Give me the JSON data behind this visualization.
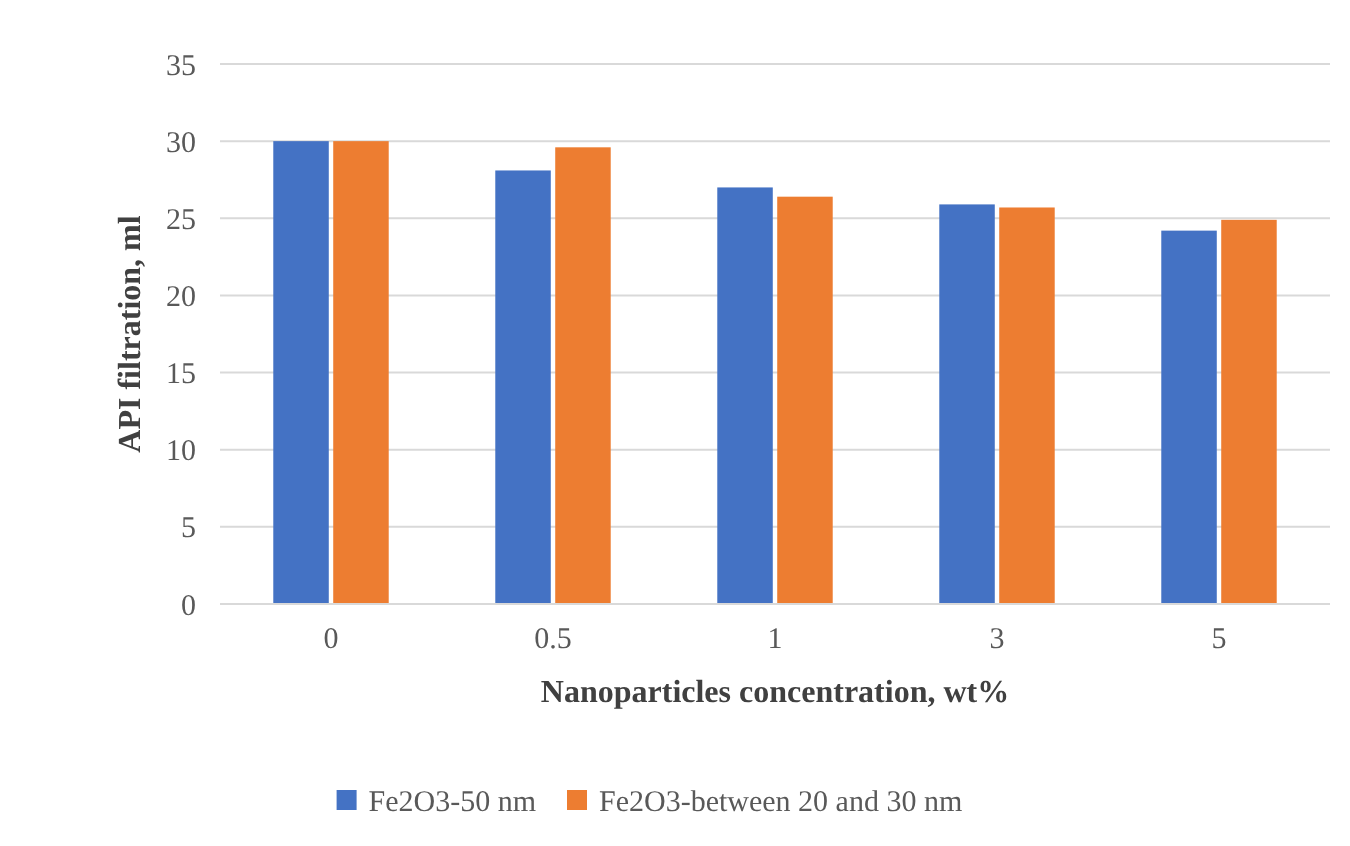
{
  "chart_data": {
    "type": "bar",
    "xlabel": "Nanoparticles concentration, wt%",
    "ylabel": "API filtration, ml",
    "categories": [
      "0",
      "0.5",
      "1",
      "3",
      "5"
    ],
    "series": [
      {
        "name": "Fe2O3-50 nm",
        "color": "#4472c4",
        "values": [
          30,
          28.1,
          27,
          25.9,
          24.2
        ]
      },
      {
        "name": "Fe2O3-between 20 and 30 nm",
        "color": "#ed7d31",
        "values": [
          30,
          29.6,
          26.4,
          25.7,
          24.9
        ]
      }
    ],
    "ylim": [
      0,
      35
    ],
    "yticks": [
      0,
      5,
      10,
      15,
      20,
      25,
      30,
      35
    ],
    "grid": "y",
    "legend": "bottom"
  }
}
